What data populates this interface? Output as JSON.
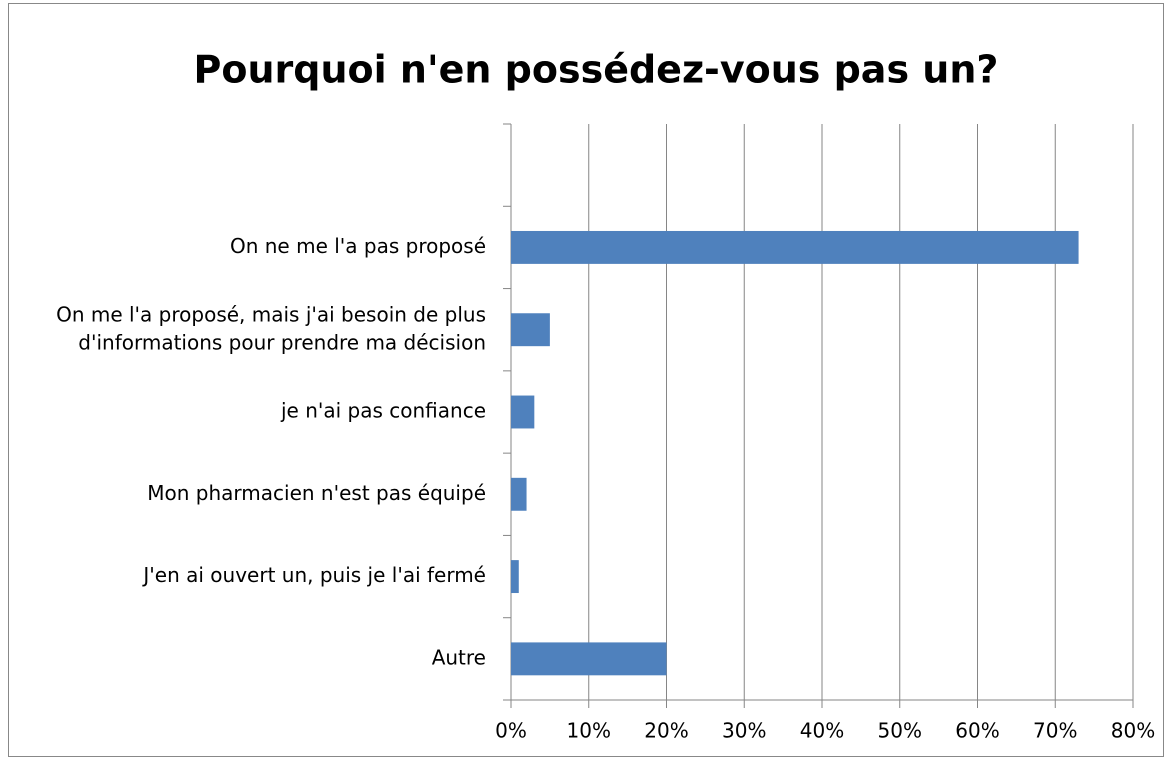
{
  "chart_data": {
    "type": "hbar",
    "title": "Pourquoi n'en possédez-vous pas un?",
    "categories": [
      null,
      "On ne me l'a pas proposé",
      "On me l'a proposé, mais j'ai besoin de plus\nd'informations pour prendre ma décision",
      "je n'ai pas confiance",
      "Mon pharmacien n'est pas équipé",
      "J'en ai ouvert un, puis je l'ai fermé",
      "Autre"
    ],
    "values": [
      null,
      73,
      5,
      3,
      2,
      1,
      20
    ],
    "color": "#4f81bd",
    "xlim": [
      0,
      80
    ],
    "xticks": [
      {
        "value": 0,
        "label": "0%"
      },
      {
        "value": 10,
        "label": "10%"
      },
      {
        "value": 20,
        "label": "20%"
      },
      {
        "value": 30,
        "label": "30%"
      },
      {
        "value": 40,
        "label": "40%"
      },
      {
        "value": 50,
        "label": "50%"
      },
      {
        "value": 60,
        "label": "60%"
      },
      {
        "value": 70,
        "label": "70%"
      },
      {
        "value": 80,
        "label": "80%"
      }
    ],
    "grid": true
  }
}
